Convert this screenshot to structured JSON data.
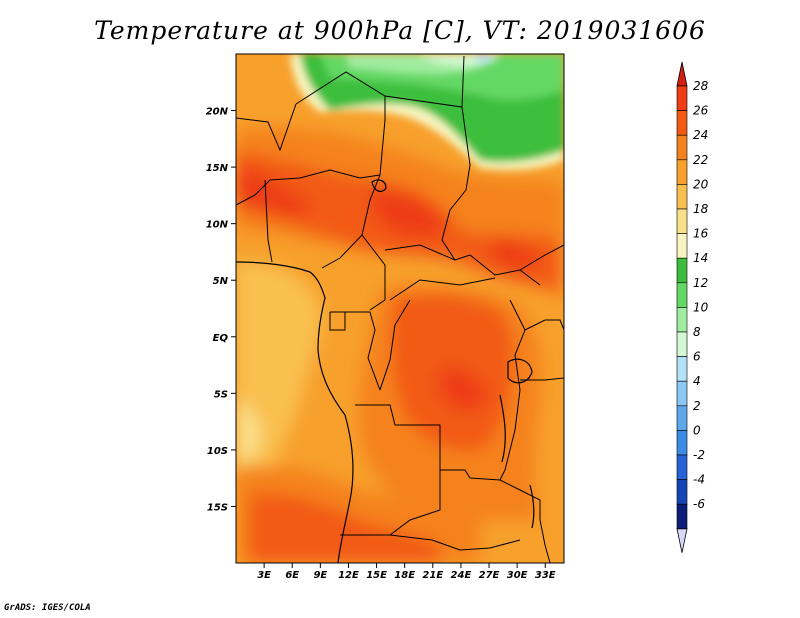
{
  "title": "Temperature at 900hPa [C], VT: 2019031606",
  "credit": "GrADS: IGES/COLA",
  "map": {
    "lon_range": [
      0,
      35
    ],
    "lat_range": [
      -20,
      25
    ],
    "lat_ticks": [
      {
        "value": 20,
        "label": "20N"
      },
      {
        "value": 15,
        "label": "15N"
      },
      {
        "value": 10,
        "label": "10N"
      },
      {
        "value": 5,
        "label": "5N"
      },
      {
        "value": 0,
        "label": "EQ"
      },
      {
        "value": -5,
        "label": "5S"
      },
      {
        "value": -10,
        "label": "10S"
      },
      {
        "value": -15,
        "label": "15S"
      }
    ],
    "lon_ticks": [
      {
        "value": 3,
        "label": "3E"
      },
      {
        "value": 6,
        "label": "6E"
      },
      {
        "value": 9,
        "label": "9E"
      },
      {
        "value": 12,
        "label": "12E"
      },
      {
        "value": 15,
        "label": "15E"
      },
      {
        "value": 18,
        "label": "18E"
      },
      {
        "value": 21,
        "label": "21E"
      },
      {
        "value": 24,
        "label": "24E"
      },
      {
        "value": 27,
        "label": "27E"
      },
      {
        "value": 30,
        "label": "30E"
      },
      {
        "value": 33,
        "label": "33E"
      }
    ]
  },
  "colorbar": {
    "levels": [
      {
        "label": "28",
        "color": "#ee3c14"
      },
      {
        "label": "26",
        "color": "#f25a14"
      },
      {
        "label": "24",
        "color": "#f5821e"
      },
      {
        "label": "22",
        "color": "#f7a02c"
      },
      {
        "label": "20",
        "color": "#f9c050"
      },
      {
        "label": "18",
        "color": "#fbe08c"
      },
      {
        "label": "16",
        "color": "#f8f6c0"
      },
      {
        "label": "14",
        "color": "#3cbe3c"
      },
      {
        "label": "12",
        "color": "#64d864"
      },
      {
        "label": "10",
        "color": "#a0eca0"
      },
      {
        "label": "8",
        "color": "#d4f8d4"
      },
      {
        "label": "6",
        "color": "#b4e0f8"
      },
      {
        "label": "4",
        "color": "#8cc8f4"
      },
      {
        "label": "2",
        "color": "#60a8ec"
      },
      {
        "label": "0",
        "color": "#3c8ce4"
      },
      {
        "label": "-2",
        "color": "#2464d8"
      },
      {
        "label": "-4",
        "color": "#1446b8"
      },
      {
        "label": "-6",
        "color": "#0c1e78"
      }
    ],
    "top_arrow_color": "#d42010",
    "bottom_arrow_color": "#d8d8f8"
  }
}
